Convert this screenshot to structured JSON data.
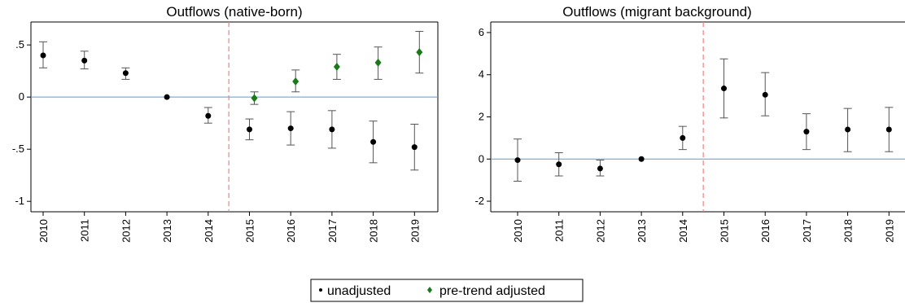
{
  "legend": {
    "items": [
      {
        "label": "unadjusted",
        "color": "#000000",
        "marker": "circle"
      },
      {
        "label": "pre-trend adjusted",
        "color": "#1a7a1a",
        "marker": "diamond"
      }
    ]
  },
  "colors": {
    "zero_line": "#5b9bd5",
    "event_line": "#f08080",
    "error_bar": "#555555"
  },
  "chart_data": [
    {
      "type": "scatter",
      "title": "Outflows (native-born)",
      "x": [
        "2010",
        "2011",
        "2012",
        "2013",
        "2014",
        "2015",
        "2016",
        "2017",
        "2018",
        "2019"
      ],
      "ylim": [
        -1.1,
        0.72
      ],
      "yticks": [
        -1,
        -0.5,
        0,
        0.5
      ],
      "ytick_labels": [
        "-1",
        "-.5",
        "0",
        ".5"
      ],
      "event_line_between": [
        "2014",
        "2015"
      ],
      "series": [
        {
          "name": "unadjusted",
          "marker": "circle",
          "values": [
            0.4,
            0.35,
            0.23,
            0.0,
            -0.18,
            -0.31,
            -0.3,
            -0.31,
            -0.43,
            -0.48
          ],
          "ci_low": [
            0.28,
            0.27,
            0.17,
            null,
            -0.25,
            -0.41,
            -0.46,
            -0.49,
            -0.63,
            -0.7
          ],
          "ci_high": [
            0.53,
            0.44,
            0.28,
            null,
            -0.1,
            -0.21,
            -0.14,
            -0.13,
            -0.23,
            -0.26
          ]
        },
        {
          "name": "pre-trend adjusted",
          "marker": "diamond",
          "x": [
            "2015",
            "2016",
            "2017",
            "2018",
            "2019"
          ],
          "values": [
            -0.01,
            0.15,
            0.29,
            0.33,
            0.43
          ],
          "ci_low": [
            -0.07,
            0.05,
            0.17,
            0.17,
            0.23
          ],
          "ci_high": [
            0.05,
            0.26,
            0.41,
            0.48,
            0.63
          ]
        }
      ]
    },
    {
      "type": "scatter",
      "title": "Outflows (migrant background)",
      "x": [
        "2010",
        "2011",
        "2012",
        "2013",
        "2014",
        "2015",
        "2016",
        "2017",
        "2018",
        "2019"
      ],
      "ylim": [
        -2.5,
        6.5
      ],
      "yticks": [
        -2,
        0,
        2,
        4,
        6
      ],
      "ytick_labels": [
        "-2",
        "0",
        "2",
        "4",
        "6"
      ],
      "event_line_between": [
        "2014",
        "2015"
      ],
      "series": [
        {
          "name": "unadjusted",
          "marker": "circle",
          "values": [
            -0.05,
            -0.25,
            -0.45,
            0.0,
            1.0,
            3.35,
            3.05,
            1.3,
            1.4,
            1.4
          ],
          "ci_low": [
            -1.05,
            -0.8,
            -0.8,
            null,
            0.45,
            1.95,
            2.05,
            0.45,
            0.35,
            0.35
          ],
          "ci_high": [
            0.95,
            0.3,
            -0.05,
            null,
            1.55,
            4.75,
            4.1,
            2.15,
            2.4,
            2.45
          ]
        }
      ]
    }
  ]
}
